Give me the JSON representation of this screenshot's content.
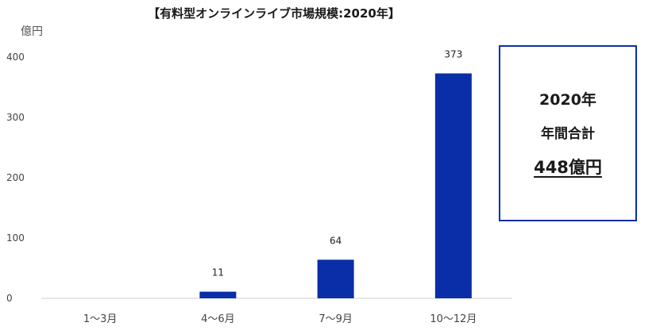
{
  "chart_data": {
    "type": "bar",
    "title": "【有料型オンラインライブ市場規模:2020年】",
    "ylabel": "億円",
    "xlabel": "",
    "categories": [
      "1〜3月",
      "4〜6月",
      "7〜9月",
      "10〜12月"
    ],
    "values": [
      0,
      11,
      64,
      373
    ],
    "data_labels": [
      "",
      "11",
      "64",
      "373"
    ],
    "yticks": [
      "0",
      "100",
      "200",
      "300",
      "400"
    ],
    "ylim": [
      0,
      400
    ],
    "grid": false,
    "bar_color": "#0a2ea8"
  },
  "summary": {
    "year": "2020年",
    "label": "年間合計",
    "total": "448億円"
  }
}
